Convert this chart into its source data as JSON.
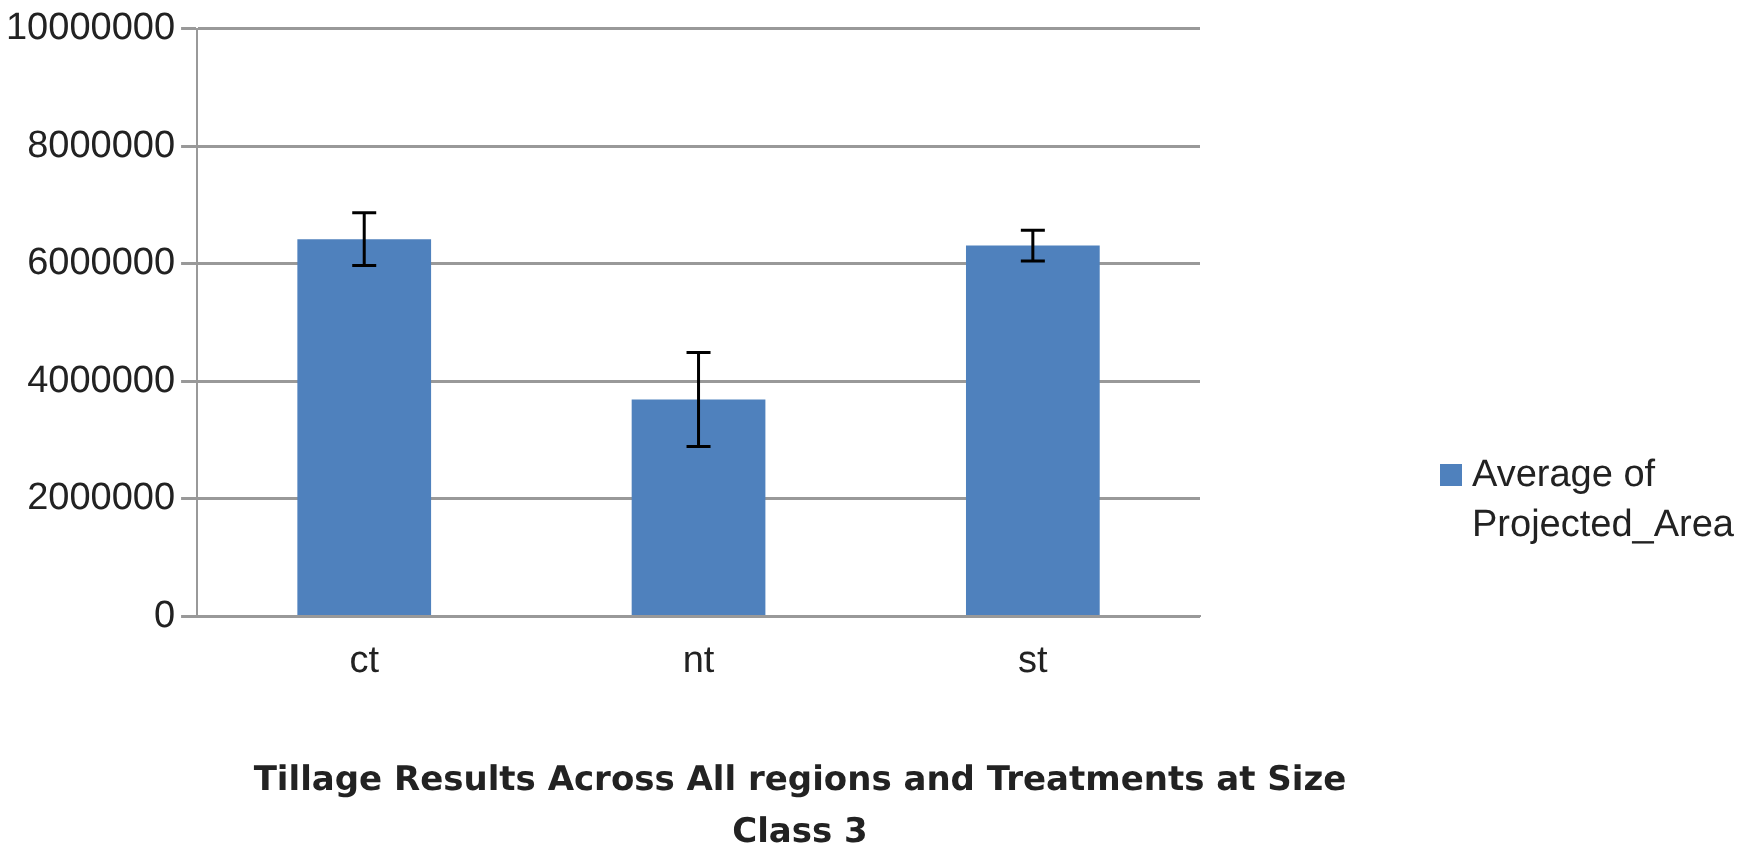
{
  "chart_data": {
    "type": "bar",
    "title": "Tillage Results Across All regions and Treatments at Size Class 3",
    "categories": [
      "ct",
      "nt",
      "st"
    ],
    "series": [
      {
        "name": "Average of Projected_Area",
        "color": "#4f81bd",
        "values": [
          6420000,
          3690000,
          6310000
        ],
        "errors": [
          450000,
          800000,
          260000
        ]
      }
    ],
    "ylim": [
      0,
      10000000
    ],
    "yticks": [
      0,
      2000000,
      4000000,
      6000000,
      8000000,
      10000000
    ],
    "grid": "y",
    "legend": "right"
  }
}
